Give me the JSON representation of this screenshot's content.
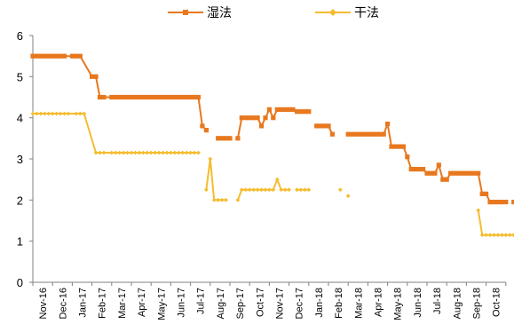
{
  "chart_data": {
    "type": "line",
    "title": "",
    "xlabel": "",
    "ylabel": "",
    "ylim": [
      0,
      6
    ],
    "yticks": [
      0,
      1,
      2,
      3,
      4,
      5,
      6
    ],
    "grid": false,
    "legend_position": "top-center",
    "month_labels": [
      "Nov-16",
      "Dec-16",
      "Jan-17",
      "Feb-17",
      "Mar-17",
      "Apr-17",
      "May-17",
      "Jun-17",
      "Jul-17",
      "Aug-17",
      "Sep-17",
      "Oct-17",
      "Nov-17",
      "Dec-17",
      "Jan-18",
      "Feb-18",
      "Mar-18",
      "Apr-18",
      "May-18",
      "Jun-18",
      "Jul-18",
      "Aug-18",
      "Sep-18",
      "Oct-18"
    ],
    "series": [
      {
        "name": "湿法",
        "color": "#E8781E",
        "marker": "square",
        "points": [
          [
            0.0,
            5.5
          ],
          [
            0.2,
            5.5
          ],
          [
            0.4,
            5.5
          ],
          [
            0.6,
            5.5
          ],
          [
            0.8,
            5.5
          ],
          [
            1.0,
            5.5
          ],
          [
            1.2,
            5.5
          ],
          [
            1.4,
            5.5
          ],
          [
            1.6,
            5.5
          ],
          [
            2.0,
            5.5
          ],
          [
            2.2,
            5.5
          ],
          [
            2.4,
            5.5
          ],
          [
            3.0,
            5.0
          ],
          [
            3.2,
            5.0
          ],
          [
            3.4,
            4.5
          ],
          [
            3.6,
            4.5
          ],
          [
            4.0,
            4.5
          ],
          [
            4.2,
            4.5
          ],
          [
            4.4,
            4.5
          ],
          [
            4.6,
            4.5
          ],
          [
            4.8,
            4.5
          ],
          [
            5.0,
            4.5
          ],
          [
            5.2,
            4.5
          ],
          [
            5.4,
            4.5
          ],
          [
            5.6,
            4.5
          ],
          [
            5.8,
            4.5
          ],
          [
            6.0,
            4.5
          ],
          [
            6.2,
            4.5
          ],
          [
            6.4,
            4.5
          ],
          [
            6.6,
            4.5
          ],
          [
            6.8,
            4.5
          ],
          [
            7.0,
            4.5
          ],
          [
            7.2,
            4.5
          ],
          [
            7.4,
            4.5
          ],
          [
            7.6,
            4.5
          ],
          [
            7.8,
            4.5
          ],
          [
            8.0,
            4.5
          ],
          [
            8.2,
            4.5
          ],
          [
            8.4,
            4.5
          ],
          [
            8.6,
            3.8
          ],
          [
            8.8,
            3.7
          ],
          null,
          [
            9.4,
            3.5
          ],
          [
            9.6,
            3.5
          ],
          [
            9.8,
            3.5
          ],
          [
            10.0,
            3.5
          ],
          null,
          [
            10.4,
            3.5
          ],
          [
            10.6,
            4.0
          ],
          [
            10.8,
            4.0
          ],
          [
            11.0,
            4.0
          ],
          [
            11.2,
            4.0
          ],
          [
            11.4,
            4.0
          ],
          [
            11.6,
            3.8
          ],
          [
            11.8,
            4.0
          ],
          [
            12.0,
            4.2
          ],
          [
            12.2,
            4.0
          ],
          [
            12.4,
            4.2
          ],
          [
            12.6,
            4.2
          ],
          [
            12.8,
            4.2
          ],
          [
            13.0,
            4.2
          ],
          [
            13.2,
            4.2
          ],
          [
            13.4,
            4.15
          ],
          [
            13.6,
            4.15
          ],
          [
            13.8,
            4.15
          ],
          [
            14.0,
            4.15
          ],
          null,
          [
            14.4,
            3.8
          ],
          [
            14.6,
            3.8
          ],
          [
            14.8,
            3.8
          ],
          [
            15.0,
            3.8
          ],
          [
            15.2,
            3.6
          ],
          null,
          [
            16.0,
            3.6
          ],
          [
            16.2,
            3.6
          ],
          [
            16.4,
            3.6
          ],
          [
            16.6,
            3.6
          ],
          [
            16.8,
            3.6
          ],
          [
            17.0,
            3.6
          ],
          [
            17.2,
            3.6
          ],
          [
            17.4,
            3.6
          ],
          [
            17.6,
            3.6
          ],
          [
            17.8,
            3.6
          ],
          [
            18.0,
            3.85
          ],
          [
            18.2,
            3.3
          ],
          [
            18.4,
            3.3
          ],
          [
            18.6,
            3.3
          ],
          [
            18.8,
            3.3
          ],
          [
            19.0,
            3.05
          ],
          [
            19.2,
            2.75
          ],
          [
            19.4,
            2.75
          ],
          [
            19.6,
            2.75
          ],
          [
            19.8,
            2.75
          ],
          [
            20.0,
            2.65
          ],
          [
            20.2,
            2.65
          ],
          [
            20.4,
            2.65
          ],
          [
            20.6,
            2.85
          ],
          [
            20.8,
            2.5
          ],
          [
            21.0,
            2.5
          ],
          [
            21.2,
            2.65
          ],
          [
            21.4,
            2.65
          ],
          [
            21.6,
            2.65
          ],
          [
            21.8,
            2.65
          ],
          [
            22.0,
            2.65
          ],
          [
            22.2,
            2.65
          ],
          [
            22.4,
            2.65
          ],
          [
            22.6,
            2.65
          ],
          [
            22.8,
            2.15
          ],
          [
            23.0,
            2.15
          ],
          [
            23.2,
            1.95
          ],
          [
            23.4,
            1.95
          ],
          [
            23.6,
            1.95
          ],
          [
            23.8,
            1.95
          ],
          [
            24.0,
            1.95
          ],
          null,
          [
            24.4,
            1.95
          ],
          [
            24.6,
            1.95
          ]
        ]
      },
      {
        "name": "干法",
        "color": "#F5BC2E",
        "marker": "diamond",
        "points": [
          [
            0.0,
            4.1
          ],
          [
            0.2,
            4.1
          ],
          [
            0.4,
            4.1
          ],
          [
            0.6,
            4.1
          ],
          [
            0.8,
            4.1
          ],
          [
            1.0,
            4.1
          ],
          [
            1.2,
            4.1
          ],
          [
            1.4,
            4.1
          ],
          [
            1.6,
            4.1
          ],
          [
            1.8,
            4.1
          ],
          [
            2.2,
            4.1
          ],
          [
            2.4,
            4.1
          ],
          [
            2.6,
            4.1
          ],
          [
            3.2,
            3.15
          ],
          [
            3.4,
            3.15
          ],
          [
            3.6,
            3.15
          ],
          [
            4.0,
            3.15
          ],
          [
            4.2,
            3.15
          ],
          [
            4.4,
            3.15
          ],
          [
            4.6,
            3.15
          ],
          [
            4.8,
            3.15
          ],
          [
            5.0,
            3.15
          ],
          [
            5.2,
            3.15
          ],
          [
            5.4,
            3.15
          ],
          [
            5.6,
            3.15
          ],
          [
            5.8,
            3.15
          ],
          [
            6.0,
            3.15
          ],
          [
            6.2,
            3.15
          ],
          [
            6.4,
            3.15
          ],
          [
            6.6,
            3.15
          ],
          [
            6.8,
            3.15
          ],
          [
            7.0,
            3.15
          ],
          [
            7.2,
            3.15
          ],
          [
            7.4,
            3.15
          ],
          [
            7.6,
            3.15
          ],
          [
            7.8,
            3.15
          ],
          [
            8.0,
            3.15
          ],
          [
            8.2,
            3.15
          ],
          [
            8.4,
            3.15
          ],
          null,
          [
            8.8,
            2.25
          ],
          [
            9.0,
            3.0
          ],
          [
            9.2,
            2.0
          ],
          [
            9.4,
            2.0
          ],
          [
            9.6,
            2.0
          ],
          [
            9.8,
            2.0
          ],
          null,
          [
            10.4,
            2.0
          ],
          [
            10.6,
            2.25
          ],
          [
            10.8,
            2.25
          ],
          [
            11.0,
            2.25
          ],
          [
            11.2,
            2.25
          ],
          [
            11.4,
            2.25
          ],
          [
            11.6,
            2.25
          ],
          [
            11.8,
            2.25
          ],
          [
            12.0,
            2.25
          ],
          [
            12.2,
            2.25
          ],
          [
            12.4,
            2.5
          ],
          [
            12.6,
            2.25
          ],
          [
            12.8,
            2.25
          ],
          [
            13.0,
            2.25
          ],
          null,
          [
            13.4,
            2.25
          ],
          [
            13.6,
            2.25
          ],
          [
            13.8,
            2.25
          ],
          [
            14.0,
            2.25
          ],
          null,
          [
            15.6,
            2.25
          ],
          null,
          [
            16.0,
            2.1
          ],
          null,
          [
            22.6,
            1.75
          ],
          [
            22.8,
            1.15
          ],
          [
            23.0,
            1.15
          ],
          [
            23.2,
            1.15
          ],
          [
            23.4,
            1.15
          ],
          [
            23.6,
            1.15
          ],
          [
            23.8,
            1.15
          ],
          [
            24.0,
            1.15
          ],
          [
            24.2,
            1.15
          ],
          [
            24.4,
            1.15
          ],
          [
            24.6,
            1.15
          ]
        ]
      }
    ]
  }
}
